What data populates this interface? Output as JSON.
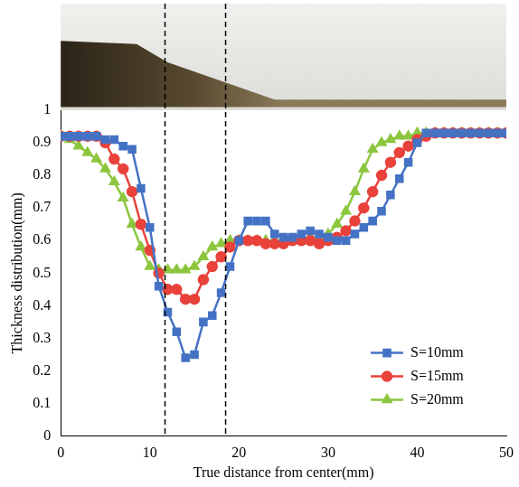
{
  "chart_data": {
    "type": "line",
    "x_label": "True distance from center(mm)",
    "y_label": "Thickness distribution(mm)",
    "x": [
      0,
      1,
      2,
      3,
      4,
      5,
      6,
      7,
      8,
      9,
      10,
      11,
      12,
      13,
      14,
      15,
      16,
      17,
      18,
      19,
      20,
      21,
      22,
      23,
      24,
      25,
      26,
      27,
      28,
      29,
      30,
      31,
      32,
      33,
      34,
      35,
      36,
      37,
      38,
      39,
      40,
      41,
      42,
      43,
      44,
      45,
      46,
      47,
      48,
      49,
      50
    ],
    "series": [
      {
        "name": "S=10mm",
        "color": "#4472c4",
        "marker": "square",
        "values": [
          0.92,
          0.92,
          0.92,
          0.92,
          0.92,
          0.91,
          0.91,
          0.89,
          0.88,
          0.76,
          0.64,
          0.46,
          0.38,
          0.32,
          0.24,
          0.25,
          0.35,
          0.37,
          0.44,
          0.52,
          0.6,
          0.66,
          0.66,
          0.66,
          0.62,
          0.61,
          0.61,
          0.62,
          0.63,
          0.62,
          0.61,
          0.6,
          0.6,
          0.62,
          0.64,
          0.66,
          0.69,
          0.74,
          0.79,
          0.84,
          0.9,
          0.93,
          0.93,
          0.93,
          0.93,
          0.93,
          0.93,
          0.93,
          0.93,
          0.93,
          0.93
        ]
      },
      {
        "name": "S=15mm",
        "color": "#e8423b",
        "marker": "circle",
        "values": [
          0.92,
          0.92,
          0.92,
          0.92,
          0.92,
          0.9,
          0.85,
          0.82,
          0.75,
          0.65,
          0.57,
          0.5,
          0.45,
          0.45,
          0.42,
          0.42,
          0.48,
          0.52,
          0.55,
          0.58,
          0.6,
          0.6,
          0.6,
          0.59,
          0.59,
          0.59,
          0.6,
          0.6,
          0.6,
          0.59,
          0.6,
          0.61,
          0.63,
          0.66,
          0.7,
          0.75,
          0.8,
          0.84,
          0.87,
          0.89,
          0.91,
          0.92,
          0.93,
          0.93,
          0.93,
          0.93,
          0.93,
          0.93,
          0.93,
          0.93,
          0.93
        ]
      },
      {
        "name": "S=20mm",
        "color": "#8cc63e",
        "marker": "triangle",
        "values": [
          0.92,
          0.91,
          0.89,
          0.87,
          0.85,
          0.82,
          0.78,
          0.73,
          0.65,
          0.58,
          0.52,
          0.51,
          0.51,
          0.51,
          0.51,
          0.52,
          0.55,
          0.58,
          0.59,
          0.6,
          0.6,
          0.6,
          0.6,
          0.6,
          0.6,
          0.6,
          0.6,
          0.6,
          0.61,
          0.61,
          0.62,
          0.65,
          0.69,
          0.75,
          0.82,
          0.88,
          0.9,
          0.91,
          0.92,
          0.92,
          0.93,
          0.93,
          0.93,
          0.93,
          0.93,
          0.93,
          0.93,
          0.93,
          0.93,
          0.93,
          0.93
        ]
      }
    ],
    "xlim": [
      0,
      50
    ],
    "xticks": [
      0,
      10,
      20,
      30,
      40,
      50
    ],
    "ylim": [
      0,
      1
    ],
    "yticks": [
      0,
      0.1,
      0.2,
      0.3,
      0.4,
      0.5,
      0.6,
      0.7,
      0.8,
      0.9,
      1
    ],
    "vlines": [
      11.7,
      18.5
    ],
    "grid": false,
    "legend": "lower right"
  }
}
